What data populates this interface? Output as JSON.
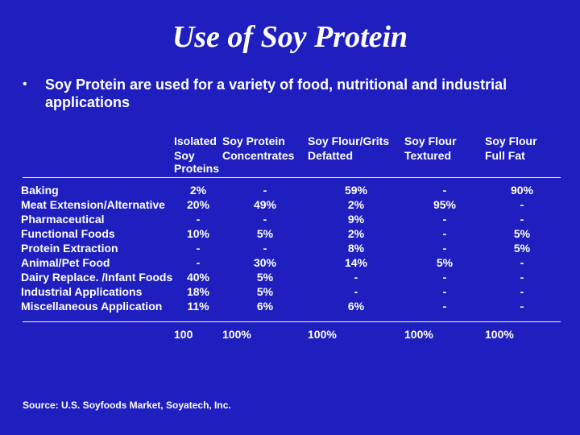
{
  "title": "Use of Soy Protein",
  "bullet": "Soy Protein are used for a variety of food, nutritional and industrial applications",
  "headers": {
    "c1a": "Isolated",
    "c1b": "Soy Proteins",
    "c2a": "Soy Protein",
    "c2b": "Concentrates",
    "c3a": "Soy Flour/Grits",
    "c3b": "Defatted",
    "c4a": "Soy Flour",
    "c4b": "Textured",
    "c5a": "Soy Flour",
    "c5b": "Full Fat"
  },
  "rows": [
    {
      "app": "Baking",
      "c1": "2%",
      "c2": "-",
      "c3": "59%",
      "c4": "-",
      "c5": "90%"
    },
    {
      "app": "Meat Extension/Alternative",
      "c1": "20%",
      "c2": "49%",
      "c3": "2%",
      "c4": "95%",
      "c5": "-"
    },
    {
      "app": "Pharmaceutical",
      "c1": "-",
      "c2": "-",
      "c3": "9%",
      "c4": "-",
      "c5": "-"
    },
    {
      "app": "Functional Foods",
      "c1": "10%",
      "c2": "5%",
      "c3": "2%",
      "c4": "-",
      "c5": "5%"
    },
    {
      "app": "Protein Extraction",
      "c1": "-",
      "c2": "-",
      "c3": "8%",
      "c4": "-",
      "c5": "5%"
    },
    {
      "app": "Animal/Pet Food",
      "c1": "-",
      "c2": "30%",
      "c3": "14%",
      "c4": "5%",
      "c5": "-"
    },
    {
      "app": "Dairy Replace. /Infant Foods",
      "c1": "40%",
      "c2": "5%",
      "c3": "-",
      "c4": "-",
      "c5": "-"
    },
    {
      "app": "Industrial Applications",
      "c1": "18%",
      "c2": "5%",
      "c3": "-",
      "c4": "-",
      "c5": "-"
    },
    {
      "app": "Miscellaneous Application",
      "c1": "11%",
      "c2": "6%",
      "c3": "6%",
      "c4": "-",
      "c5": "-"
    }
  ],
  "totals": {
    "c1": "100",
    "c2": "100%",
    "c3": "100%",
    "c4": "100%",
    "c5": "100%"
  },
  "source": "Source: U.S. Soyfoods Market, Soyatech, Inc."
}
